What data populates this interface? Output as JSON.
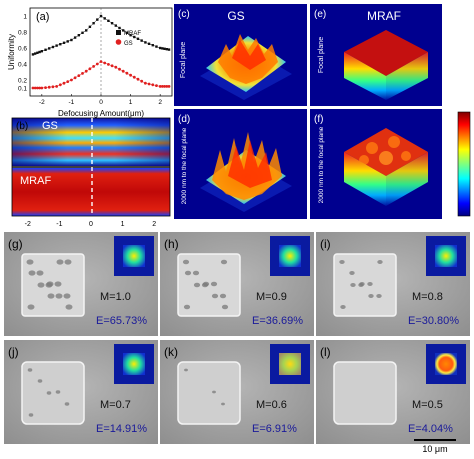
{
  "panels": {
    "a": {
      "label": "(a)",
      "ylabel": "Uniformity",
      "xlabel": "Defocusing Amount(μm)",
      "legend": [
        "MRAF",
        "GS"
      ],
      "yticks": [
        "1",
        "0.8",
        "0.6",
        "0.4",
        "0.2",
        "0.1"
      ],
      "xticks": [
        "-2",
        "-1",
        "0",
        "1",
        "2"
      ]
    },
    "b": {
      "label": "(b)",
      "top_title": "GS",
      "bottom_title": "MRAF",
      "xticks": [
        "-2",
        "-1",
        "0",
        "1",
        "2"
      ]
    },
    "c": {
      "label": "(c)",
      "title": "GS",
      "side_label": "Focal plane"
    },
    "d": {
      "label": "(d)",
      "side_label": "2000 nm to the focal plane"
    },
    "e": {
      "label": "(e)",
      "title": "MRAF",
      "side_label": "Focal plane"
    },
    "f": {
      "label": "(f)",
      "side_label": "2000 nm to the focal plane"
    },
    "sem": [
      {
        "label": "(g)",
        "m": "M=1.0",
        "e": "E=65.73%"
      },
      {
        "label": "(h)",
        "m": "M=0.9",
        "e": "E=36.69%"
      },
      {
        "label": "(i)",
        "m": "M=0.8",
        "e": "E=30.80%"
      },
      {
        "label": "(j)",
        "m": "M=0.7",
        "e": "E=14.91%"
      },
      {
        "label": "(k)",
        "m": "M=0.6",
        "e": "E=6.91%"
      },
      {
        "label": "(l)",
        "m": "M=0.5",
        "e": "E=4.04%"
      }
    ],
    "scale_bar": "10 μm"
  },
  "colors": {
    "mraf_series": "#111111",
    "gs_series": "#e02020",
    "jet_dark": "#00008f",
    "jet_red": "#d01010",
    "m_text": "#111111",
    "e_text": "#1a1a9a"
  },
  "chart_data": {
    "type": "line",
    "title": "",
    "xlabel": "Defocusing Amount(μm)",
    "ylabel": "Uniformity",
    "xlim": [
      -2.4,
      2.4
    ],
    "ylim": [
      0,
      1.1
    ],
    "x": [
      -2.3,
      -2.0,
      -1.5,
      -1.0,
      -0.5,
      0.0,
      0.5,
      1.0,
      1.5,
      2.0,
      2.3
    ],
    "series": [
      {
        "name": "MRAF",
        "values": [
          0.52,
          0.56,
          0.63,
          0.7,
          0.82,
          1.0,
          0.88,
          0.76,
          0.67,
          0.6,
          0.58
        ]
      },
      {
        "name": "GS",
        "values": [
          0.1,
          0.1,
          0.12,
          0.2,
          0.31,
          0.43,
          0.36,
          0.26,
          0.16,
          0.12,
          0.12
        ]
      }
    ]
  }
}
